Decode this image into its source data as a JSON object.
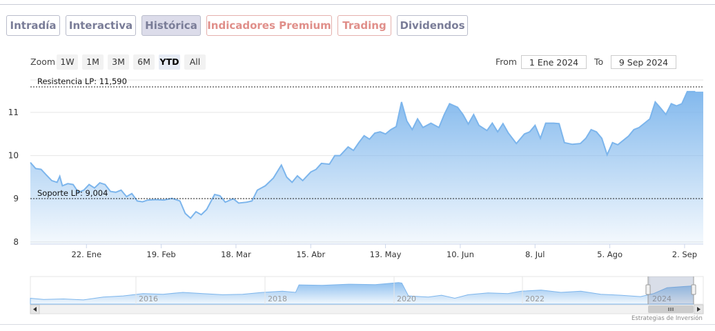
{
  "tabs": [
    {
      "label": "Intradía",
      "active": false,
      "premium": false
    },
    {
      "label": "Interactiva",
      "active": false,
      "premium": false
    },
    {
      "label": "Histórica",
      "active": true,
      "premium": false
    },
    {
      "label": "Indicadores Premium",
      "active": false,
      "premium": true
    },
    {
      "label": "Trading",
      "active": false,
      "premium": true
    },
    {
      "label": "Dividendos",
      "active": false,
      "premium": false
    }
  ],
  "zoom": {
    "label": "Zoom",
    "buttons": [
      "1W",
      "1M",
      "3M",
      "6M",
      "YTD",
      "All"
    ],
    "selected": "YTD"
  },
  "range": {
    "from_label": "From",
    "from_value": "1 Ene 2024",
    "to_label": "To",
    "to_value": "9 Sep 2024"
  },
  "credit": "Estrategias de Inversión",
  "colors": {
    "accent": "#7cb5ec",
    "tab_text": "#7a7d98",
    "premium_text": "#e08f8a"
  },
  "chart_data": {
    "type": "area",
    "title": "",
    "xlabel": "",
    "ylabel": "",
    "ylim": [
      7.95,
      11.75
    ],
    "yticks": [
      8,
      9,
      10,
      11
    ],
    "xlim": [
      "2024-01-01",
      "2024-09-09"
    ],
    "xticks": [
      {
        "date": "2024-01-22",
        "label": "22. Ene"
      },
      {
        "date": "2024-02-19",
        "label": "19. Feb"
      },
      {
        "date": "2024-03-18",
        "label": "18. Mar"
      },
      {
        "date": "2024-04-15",
        "label": "15. Abr"
      },
      {
        "date": "2024-05-13",
        "label": "13. May"
      },
      {
        "date": "2024-06-10",
        "label": "10. Jun"
      },
      {
        "date": "2024-07-08",
        "label": "8. Jul"
      },
      {
        "date": "2024-08-05",
        "label": "5. Ago"
      },
      {
        "date": "2024-09-02",
        "label": "2. Sep"
      }
    ],
    "grid": true,
    "series": [
      {
        "points": [
          [
            "2024-01-01",
            9.84
          ],
          [
            "2024-01-03",
            9.7
          ],
          [
            "2024-01-05",
            9.68
          ],
          [
            "2024-01-07",
            9.55
          ],
          [
            "2024-01-09",
            9.42
          ],
          [
            "2024-01-11",
            9.38
          ],
          [
            "2024-01-12",
            9.52
          ],
          [
            "2024-01-13",
            9.3
          ],
          [
            "2024-01-15",
            9.35
          ],
          [
            "2024-01-17",
            9.33
          ],
          [
            "2024-01-19",
            9.15
          ],
          [
            "2024-01-21",
            9.2
          ],
          [
            "2024-01-23",
            9.33
          ],
          [
            "2024-01-25",
            9.25
          ],
          [
            "2024-01-27",
            9.37
          ],
          [
            "2024-01-29",
            9.33
          ],
          [
            "2024-01-31",
            9.17
          ],
          [
            "2024-02-02",
            9.15
          ],
          [
            "2024-02-04",
            9.2
          ],
          [
            "2024-02-06",
            9.05
          ],
          [
            "2024-02-08",
            9.12
          ],
          [
            "2024-02-10",
            8.95
          ],
          [
            "2024-02-12",
            8.93
          ],
          [
            "2024-02-14",
            8.97
          ],
          [
            "2024-02-17",
            8.98
          ],
          [
            "2024-02-20",
            8.97
          ],
          [
            "2024-02-23",
            9.01
          ],
          [
            "2024-02-26",
            8.95
          ],
          [
            "2024-02-28",
            8.66
          ],
          [
            "2024-03-01",
            8.55
          ],
          [
            "2024-03-03",
            8.7
          ],
          [
            "2024-03-05",
            8.63
          ],
          [
            "2024-03-07",
            8.75
          ],
          [
            "2024-03-10",
            9.1
          ],
          [
            "2024-03-12",
            9.07
          ],
          [
            "2024-03-14",
            8.92
          ],
          [
            "2024-03-17",
            9.0
          ],
          [
            "2024-03-19",
            8.9
          ],
          [
            "2024-03-22",
            8.92
          ],
          [
            "2024-03-24",
            8.95
          ],
          [
            "2024-03-26",
            9.2
          ],
          [
            "2024-03-29",
            9.3
          ],
          [
            "2024-04-01",
            9.48
          ],
          [
            "2024-04-04",
            9.78
          ],
          [
            "2024-04-06",
            9.5
          ],
          [
            "2024-04-08",
            9.38
          ],
          [
            "2024-04-10",
            9.53
          ],
          [
            "2024-04-12",
            9.42
          ],
          [
            "2024-04-15",
            9.62
          ],
          [
            "2024-04-17",
            9.68
          ],
          [
            "2024-04-19",
            9.82
          ],
          [
            "2024-04-22",
            9.8
          ],
          [
            "2024-04-24",
            10.0
          ],
          [
            "2024-04-26",
            10.0
          ],
          [
            "2024-04-29",
            10.2
          ],
          [
            "2024-05-01",
            10.12
          ],
          [
            "2024-05-03",
            10.3
          ],
          [
            "2024-05-05",
            10.46
          ],
          [
            "2024-05-07",
            10.38
          ],
          [
            "2024-05-09",
            10.52
          ],
          [
            "2024-05-11",
            10.55
          ],
          [
            "2024-05-13",
            10.5
          ],
          [
            "2024-05-15",
            10.6
          ],
          [
            "2024-05-17",
            10.67
          ],
          [
            "2024-05-19",
            11.24
          ],
          [
            "2024-05-21",
            10.8
          ],
          [
            "2024-05-23",
            10.6
          ],
          [
            "2024-05-25",
            10.85
          ],
          [
            "2024-05-27",
            10.65
          ],
          [
            "2024-05-30",
            10.75
          ],
          [
            "2024-06-02",
            10.65
          ],
          [
            "2024-06-04",
            10.95
          ],
          [
            "2024-06-06",
            11.2
          ],
          [
            "2024-06-09",
            11.12
          ],
          [
            "2024-06-11",
            10.95
          ],
          [
            "2024-06-13",
            10.73
          ],
          [
            "2024-06-15",
            10.95
          ],
          [
            "2024-06-17",
            10.7
          ],
          [
            "2024-06-20",
            10.58
          ],
          [
            "2024-06-22",
            10.75
          ],
          [
            "2024-06-24",
            10.55
          ],
          [
            "2024-06-26",
            10.74
          ],
          [
            "2024-06-28",
            10.52
          ],
          [
            "2024-07-01",
            10.28
          ],
          [
            "2024-07-04",
            10.5
          ],
          [
            "2024-07-06",
            10.55
          ],
          [
            "2024-07-08",
            10.7
          ],
          [
            "2024-07-10",
            10.4
          ],
          [
            "2024-07-12",
            10.75
          ],
          [
            "2024-07-15",
            10.75
          ],
          [
            "2024-07-17",
            10.74
          ],
          [
            "2024-07-19",
            10.3
          ],
          [
            "2024-07-22",
            10.26
          ],
          [
            "2024-07-25",
            10.28
          ],
          [
            "2024-07-27",
            10.4
          ],
          [
            "2024-07-29",
            10.6
          ],
          [
            "2024-07-31",
            10.55
          ],
          [
            "2024-08-02",
            10.4
          ],
          [
            "2024-08-04",
            10.02
          ],
          [
            "2024-08-06",
            10.3
          ],
          [
            "2024-08-08",
            10.25
          ],
          [
            "2024-08-10",
            10.35
          ],
          [
            "2024-08-12",
            10.45
          ],
          [
            "2024-08-14",
            10.6
          ],
          [
            "2024-08-16",
            10.65
          ],
          [
            "2024-08-18",
            10.75
          ],
          [
            "2024-08-20",
            10.85
          ],
          [
            "2024-08-22",
            11.24
          ],
          [
            "2024-08-24",
            11.1
          ],
          [
            "2024-08-26",
            10.95
          ],
          [
            "2024-08-28",
            11.2
          ],
          [
            "2024-08-30",
            11.15
          ],
          [
            "2024-09-01",
            11.2
          ],
          [
            "2024-09-03",
            11.48
          ],
          [
            "2024-09-06",
            11.48
          ]
        ]
      }
    ],
    "annotations": [
      {
        "label": "Resistencia LP: 11,590",
        "value": 11.59
      },
      {
        "label": "Soporte LP: 9,004",
        "value": 9.004
      }
    ],
    "navigator": {
      "xticks": [
        "2016",
        "2018",
        "2020",
        "2022",
        "2024"
      ]
    }
  }
}
